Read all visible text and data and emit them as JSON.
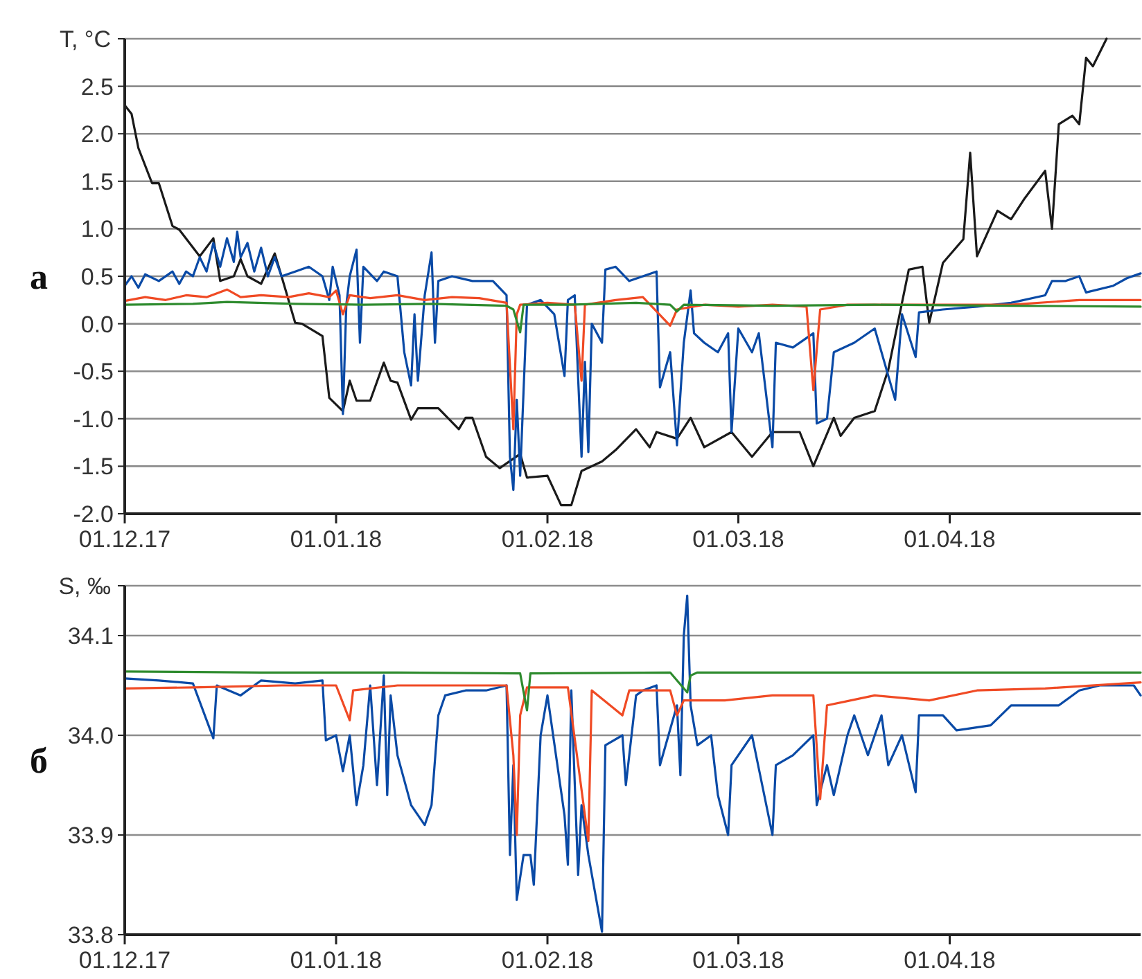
{
  "chart_data": [
    {
      "type": "line",
      "title": "а",
      "ylabel": "T, °C",
      "xlim": [
        "2017-12-01",
        "2018-04-29"
      ],
      "xticks": [
        {
          "value": "2017-12-01",
          "label": "01.12.17"
        },
        {
          "value": "2018-01-01",
          "label": "01.01.18"
        },
        {
          "value": "2018-02-01",
          "label": "01.02.18"
        },
        {
          "value": "2018-03-01",
          "label": "01.03.18"
        },
        {
          "value": "2018-04-01",
          "label": "01.04.18"
        }
      ],
      "ylim": [
        -2.0,
        3.0
      ],
      "yticks": [
        {
          "value": -2.0,
          "label": "-2.0"
        },
        {
          "value": -1.5,
          "label": "-1.5"
        },
        {
          "value": -1.0,
          "label": "-1.0"
        },
        {
          "value": -0.5,
          "label": "-0.5"
        },
        {
          "value": 0,
          "label": "0.0"
        },
        {
          "value": 0.5,
          "label": "0.5"
        },
        {
          "value": 1.0,
          "label": "1.0"
        },
        {
          "value": 1.5,
          "label": "1.5"
        },
        {
          "value": 2.0,
          "label": "2.0"
        },
        {
          "value": 2.5,
          "label": "2.5"
        },
        {
          "value": 3.0,
          "label": null
        }
      ],
      "grid": "y",
      "series": [
        {
          "color": "#1a1a1a",
          "x": [
            "2017-12-01",
            "2017-12-02",
            "2017-12-03",
            "2017-12-05",
            "2017-12-06",
            "2017-12-08",
            "2017-12-09",
            "2017-12-12",
            "2017-12-14",
            "2017-12-15",
            "2017-12-17",
            "2017-12-18",
            "2017-12-19",
            "2017-12-21",
            "2017-12-23",
            "2017-12-24",
            "2017-12-26",
            "2017-12-27",
            "2017-12-30",
            "2017-12-31",
            "2018-01-02",
            "2018-01-03",
            "2018-01-04",
            "2018-01-06",
            "2018-01-08",
            "2018-01-09",
            "2018-01-10",
            "2018-01-12",
            "2018-01-13",
            "2018-01-16",
            "2018-01-19",
            "2018-01-20",
            "2018-01-21",
            "2018-01-23",
            "2018-01-25",
            "2018-01-28",
            "2018-01-29",
            "2018-02-01",
            "2018-02-03",
            "2018-02-04T12:00",
            "2018-02-06",
            "2018-02-09",
            "2018-02-11",
            "2018-02-14",
            "2018-02-16",
            "2018-02-17",
            "2018-02-20",
            "2018-02-22",
            "2018-02-24",
            "2018-02-28",
            "2018-03-03",
            "2018-03-06",
            "2018-03-10",
            "2018-03-12",
            "2018-03-15",
            "2018-03-16",
            "2018-03-18",
            "2018-03-21",
            "2018-03-23",
            "2018-03-26",
            "2018-03-28",
            "2018-03-29",
            "2018-03-31",
            "2018-04-03",
            "2018-04-04",
            "2018-04-05",
            "2018-04-08",
            "2018-04-10",
            "2018-04-12",
            "2018-04-15",
            "2018-04-16",
            "2018-04-17",
            "2018-04-19",
            "2018-04-20",
            "2018-04-21",
            "2018-04-22",
            "2018-04-24"
          ],
          "values": [
            2.3,
            2.21,
            1.85,
            1.48,
            1.48,
            1.03,
            0.99,
            0.71,
            0.9,
            0.45,
            0.5,
            0.68,
            0.5,
            0.42,
            0.74,
            0.5,
            0.01,
            0.0,
            -0.13,
            -0.78,
            -0.92,
            -0.6,
            -0.81,
            -0.81,
            -0.41,
            -0.6,
            -0.62,
            -1.01,
            -0.89,
            -0.89,
            -1.11,
            -0.99,
            -0.99,
            -1.4,
            -1.52,
            -1.37,
            -1.62,
            -1.6,
            -1.91,
            -1.91,
            -1.55,
            -1.45,
            -1.33,
            -1.11,
            -1.3,
            -1.14,
            -1.21,
            -0.99,
            -1.3,
            -1.14,
            -1.4,
            -1.14,
            -1.14,
            -1.5,
            -0.99,
            -1.18,
            -0.99,
            -0.92,
            -0.48,
            0.57,
            0.6,
            0.01,
            0.64,
            0.89,
            1.8,
            0.71,
            1.19,
            1.1,
            1.32,
            1.61,
            1.0,
            2.1,
            2.19,
            2.1,
            2.8,
            2.71,
            3.0
          ]
        },
        {
          "color": "#0a4aa6",
          "x": [
            "2017-12-01",
            "2017-12-02",
            "2017-12-03",
            "2017-12-04",
            "2017-12-06",
            "2017-12-08",
            "2017-12-09",
            "2017-12-10",
            "2017-12-11",
            "2017-12-12",
            "2017-12-13",
            "2017-12-14",
            "2017-12-15",
            "2017-12-16",
            "2017-12-17",
            "2017-12-17T12:00",
            "2017-12-18",
            "2017-12-19",
            "2017-12-20",
            "2017-12-21",
            "2017-12-22",
            "2017-12-23",
            "2017-12-24",
            "2017-12-26",
            "2017-12-28",
            "2017-12-30",
            "2017-12-31",
            "2017-12-31T12:00",
            "2018-01-01T12:00",
            "2018-01-02",
            "2018-01-02T12:00",
            "2018-01-03",
            "2018-01-04",
            "2018-01-04T12:00",
            "2018-01-05",
            "2018-01-07",
            "2018-01-08",
            "2018-01-10",
            "2018-01-11",
            "2018-01-12",
            "2018-01-12T12:00",
            "2018-01-13",
            "2018-01-14",
            "2018-01-15",
            "2018-01-15T12:00",
            "2018-01-16",
            "2018-01-18",
            "2018-01-21",
            "2018-01-24",
            "2018-01-26",
            "2018-01-26T12:00",
            "2018-01-27",
            "2018-01-27T12:00",
            "2018-01-28",
            "2018-01-29",
            "2018-01-31",
            "2018-02-02",
            "2018-02-03T12:00",
            "2018-02-04",
            "2018-02-05",
            "2018-02-05T12:00",
            "2018-02-06",
            "2018-02-06T12:00",
            "2018-02-07",
            "2018-02-07T12:00",
            "2018-02-09",
            "2018-02-09T12:00",
            "2018-02-11",
            "2018-02-13",
            "2018-02-15",
            "2018-02-17",
            "2018-02-17T12:00",
            "2018-02-19",
            "2018-02-20",
            "2018-02-21",
            "2018-02-22",
            "2018-02-22T12:00",
            "2018-02-24",
            "2018-02-26",
            "2018-02-27T12:00",
            "2018-02-28",
            "2018-03-01",
            "2018-03-03",
            "2018-03-04",
            "2018-03-06",
            "2018-03-06T12:00",
            "2018-03-09",
            "2018-03-12",
            "2018-03-12T12:00",
            "2018-03-14",
            "2018-03-15",
            "2018-03-18",
            "2018-03-21",
            "2018-03-24",
            "2018-03-25",
            "2018-03-27",
            "2018-03-27T12:00",
            "2018-03-31",
            "2018-04-05",
            "2018-04-10",
            "2018-04-15",
            "2018-04-16",
            "2018-04-18",
            "2018-04-20",
            "2018-04-21",
            "2018-04-25",
            "2018-04-27",
            "2018-04-29"
          ],
          "values": [
            0.4,
            0.5,
            0.38,
            0.52,
            0.45,
            0.55,
            0.42,
            0.55,
            0.5,
            0.7,
            0.55,
            0.85,
            0.6,
            0.9,
            0.65,
            0.97,
            0.7,
            0.85,
            0.55,
            0.8,
            0.5,
            0.7,
            0.5,
            0.55,
            0.6,
            0.5,
            0.25,
            0.6,
            0.3,
            -0.95,
            0.2,
            0.5,
            0.78,
            -0.2,
            0.6,
            0.45,
            0.55,
            0.5,
            -0.3,
            -0.65,
            0.1,
            -0.6,
            0.3,
            0.75,
            -0.2,
            0.45,
            0.5,
            0.45,
            0.45,
            0.3,
            -1.4,
            -1.75,
            -0.8,
            -1.6,
            0.2,
            0.25,
            0.1,
            -0.55,
            0.25,
            0.3,
            -0.57,
            -1.4,
            -0.4,
            -1.35,
            0.0,
            -0.2,
            0.57,
            0.6,
            0.45,
            0.5,
            0.55,
            -0.67,
            -0.3,
            -1.28,
            -0.2,
            0.35,
            -0.1,
            -0.2,
            -0.3,
            -0.1,
            -1.14,
            -0.05,
            -0.3,
            -0.1,
            -1.3,
            -0.2,
            -0.25,
            -0.1,
            -1.05,
            -1.0,
            -0.3,
            -0.2,
            -0.05,
            -0.8,
            0.1,
            -0.35,
            0.12,
            0.15,
            0.18,
            0.22,
            0.3,
            0.45,
            0.45,
            0.5,
            0.33,
            0.4,
            0.48,
            0.53
          ]
        },
        {
          "color": "#f04a24",
          "x": [
            "2017-12-01",
            "2017-12-04",
            "2017-12-07",
            "2017-12-10",
            "2017-12-13",
            "2017-12-16",
            "2017-12-18",
            "2017-12-21",
            "2017-12-25",
            "2017-12-28",
            "2017-12-31",
            "2018-01-01",
            "2018-01-02",
            "2018-01-03",
            "2018-01-06",
            "2018-01-10",
            "2018-01-14",
            "2018-01-18",
            "2018-01-22",
            "2018-01-26",
            "2018-01-27",
            "2018-01-27T12:00",
            "2018-01-28",
            "2018-02-01",
            "2018-02-05",
            "2018-02-06",
            "2018-02-06T12:00",
            "2018-02-11",
            "2018-02-15",
            "2018-02-19",
            "2018-02-20",
            "2018-02-24",
            "2018-03-01",
            "2018-03-06",
            "2018-03-11",
            "2018-03-12",
            "2018-03-13",
            "2018-03-17",
            "2018-03-23",
            "2018-03-31",
            "2018-04-10",
            "2018-04-20",
            "2018-04-29"
          ],
          "values": [
            0.24,
            0.28,
            0.25,
            0.3,
            0.28,
            0.36,
            0.28,
            0.3,
            0.28,
            0.32,
            0.28,
            0.35,
            0.1,
            0.3,
            0.27,
            0.3,
            0.25,
            0.28,
            0.27,
            0.22,
            -1.11,
            0.1,
            0.2,
            0.22,
            0.2,
            -0.6,
            0.2,
            0.25,
            0.28,
            -0.02,
            0.15,
            0.2,
            0.18,
            0.2,
            0.18,
            -0.7,
            0.15,
            0.2,
            0.2,
            0.2,
            0.2,
            0.25,
            0.25
          ]
        },
        {
          "color": "#2e8b2e",
          "x": [
            "2017-12-01",
            "2017-12-11",
            "2017-12-16",
            "2017-12-26",
            "2018-01-05",
            "2018-01-15",
            "2018-01-26",
            "2018-01-27",
            "2018-01-28",
            "2018-01-28T12:00",
            "2018-02-04",
            "2018-02-14",
            "2018-02-19",
            "2018-02-20",
            "2018-02-21",
            "2018-03-06",
            "2018-03-21",
            "2018-04-10",
            "2018-04-29"
          ],
          "values": [
            0.2,
            0.21,
            0.23,
            0.21,
            0.2,
            0.21,
            0.19,
            0.15,
            -0.09,
            0.2,
            0.2,
            0.22,
            0.2,
            0.13,
            0.2,
            0.19,
            0.2,
            0.19,
            0.18
          ]
        }
      ]
    },
    {
      "type": "line",
      "title": "б",
      "ylabel": "S, ‰",
      "xlim": [
        "2017-12-01",
        "2018-04-29"
      ],
      "xticks": [
        {
          "value": "2017-12-01",
          "label": "01.12.17"
        },
        {
          "value": "2018-01-01",
          "label": "01.01.18"
        },
        {
          "value": "2018-02-01",
          "label": "01.02.18"
        },
        {
          "value": "2018-03-01",
          "label": "01.03.18"
        },
        {
          "value": "2018-04-01",
          "label": "01.04.18"
        }
      ],
      "ylim": [
        33.8,
        34.15
      ],
      "yticks": [
        33.8,
        33.9,
        {
          "value": 34.0,
          "label": "34.0"
        },
        34.1,
        {
          "value": 34.15,
          "label": null
        }
      ],
      "grid": "y",
      "series": [
        {
          "color": "#0a4aa6",
          "x": [
            "2017-12-01",
            "2017-12-06",
            "2017-12-11",
            "2017-12-14",
            "2017-12-14T12:00",
            "2017-12-18",
            "2017-12-21",
            "2017-12-26",
            "2017-12-30",
            "2017-12-30T12:00",
            "2018-01-01",
            "2018-01-02",
            "2018-01-03",
            "2018-01-04",
            "2018-01-05",
            "2018-01-06",
            "2018-01-07",
            "2018-01-08",
            "2018-01-08T12:00",
            "2018-01-09",
            "2018-01-10",
            "2018-01-12",
            "2018-01-14",
            "2018-01-15",
            "2018-01-16",
            "2018-01-17",
            "2018-01-20",
            "2018-01-23",
            "2018-01-26",
            "2018-01-26T12:00",
            "2018-01-27",
            "2018-01-27T12:00",
            "2018-01-28T12:00",
            "2018-01-29T12:00",
            "2018-01-30",
            "2018-01-31",
            "2018-02-01",
            "2018-02-03T12:00",
            "2018-02-04",
            "2018-02-04T12:00",
            "2018-02-05T12:00",
            "2018-02-06",
            "2018-02-07",
            "2018-02-09",
            "2018-02-09T12:00",
            "2018-02-12",
            "2018-02-12T12:00",
            "2018-02-14",
            "2018-02-15",
            "2018-02-17",
            "2018-02-17T12:00",
            "2018-02-20",
            "2018-02-20T12:00",
            "2018-02-21",
            "2018-02-21T12:00",
            "2018-02-22",
            "2018-02-23",
            "2018-02-25",
            "2018-02-26",
            "2018-02-27T12:00",
            "2018-02-28",
            "2018-03-03",
            "2018-03-06",
            "2018-03-06T12:00",
            "2018-03-09",
            "2018-03-12",
            "2018-03-12T12:00",
            "2018-03-14",
            "2018-03-15",
            "2018-03-17",
            "2018-03-18",
            "2018-03-20",
            "2018-03-22",
            "2018-03-23",
            "2018-03-25",
            "2018-03-27",
            "2018-03-27T12:00",
            "2018-03-31",
            "2018-04-02",
            "2018-04-07",
            "2018-04-10",
            "2018-04-17",
            "2018-04-20",
            "2018-04-23",
            "2018-04-28",
            "2018-04-29"
          ],
          "values": [
            34.057,
            34.055,
            34.052,
            33.997,
            34.05,
            34.04,
            34.055,
            34.052,
            34.055,
            33.995,
            34.0,
            33.964,
            34.0,
            33.93,
            33.97,
            34.05,
            33.95,
            34.06,
            33.94,
            34.04,
            33.98,
            33.93,
            33.91,
            33.93,
            34.02,
            34.04,
            34.045,
            34.045,
            34.05,
            33.88,
            33.97,
            33.835,
            33.88,
            33.88,
            33.85,
            34.0,
            34.04,
            33.92,
            33.87,
            34.045,
            33.86,
            33.93,
            33.88,
            33.803,
            33.99,
            34.0,
            33.95,
            34.04,
            34.045,
            34.05,
            33.97,
            34.03,
            33.96,
            34.1,
            34.14,
            34.03,
            33.99,
            34.0,
            33.94,
            33.9,
            33.97,
            34.0,
            33.9,
            33.97,
            33.98,
            34.0,
            33.93,
            33.97,
            33.94,
            34.0,
            34.02,
            33.98,
            34.02,
            33.97,
            34.0,
            33.943,
            34.02,
            34.02,
            34.005,
            34.01,
            34.03,
            34.03,
            34.045,
            34.05,
            34.05,
            34.04
          ]
        },
        {
          "color": "#f04a24",
          "x": [
            "2017-12-01",
            "2017-12-11",
            "2017-12-24",
            "2018-01-01",
            "2018-01-03",
            "2018-01-03T12:00",
            "2018-01-10",
            "2018-01-20",
            "2018-01-26",
            "2018-01-27",
            "2018-01-27T12:00",
            "2018-01-28",
            "2018-01-29",
            "2018-02-04",
            "2018-02-07",
            "2018-02-07T12:00",
            "2018-02-12",
            "2018-02-13",
            "2018-02-19",
            "2018-02-20",
            "2018-02-21",
            "2018-02-27",
            "2018-03-06",
            "2018-03-12",
            "2018-03-13",
            "2018-03-14",
            "2018-03-21",
            "2018-03-29",
            "2018-04-05",
            "2018-04-15",
            "2018-04-29"
          ],
          "values": [
            34.047,
            34.048,
            34.05,
            34.05,
            34.015,
            34.045,
            34.05,
            34.05,
            34.05,
            33.98,
            33.9,
            34.02,
            34.048,
            34.048,
            33.894,
            34.045,
            34.02,
            34.045,
            34.045,
            34.02,
            34.035,
            34.035,
            34.04,
            34.04,
            33.936,
            34.03,
            34.04,
            34.035,
            34.045,
            34.047,
            34.053
          ]
        },
        {
          "color": "#2e8b2e",
          "x": [
            "2017-12-01",
            "2017-12-21",
            "2018-01-10",
            "2018-01-28",
            "2018-01-29",
            "2018-01-29T12:00",
            "2018-02-19",
            "2018-02-21T12:00",
            "2018-02-22",
            "2018-02-23",
            "2018-03-11",
            "2018-03-26",
            "2018-04-29"
          ],
          "values": [
            34.064,
            34.063,
            34.063,
            34.062,
            34.025,
            34.062,
            34.063,
            34.043,
            34.06,
            34.063,
            34.063,
            34.063,
            34.063
          ]
        }
      ]
    }
  ]
}
